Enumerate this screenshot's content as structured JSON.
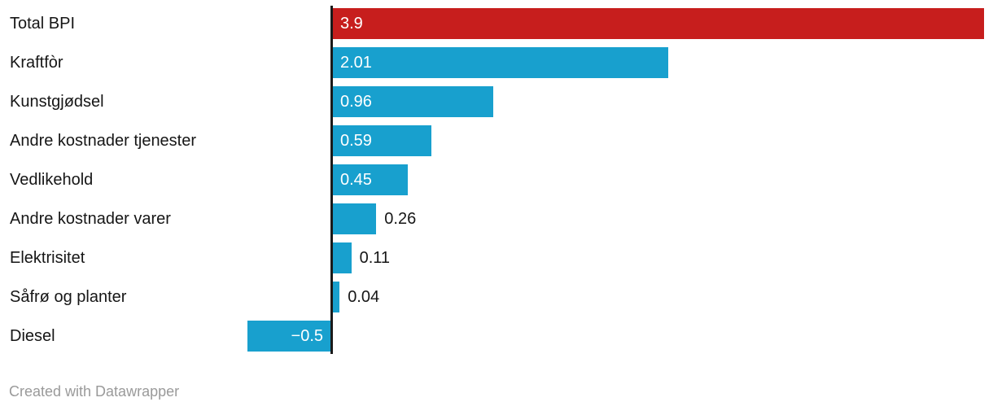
{
  "chart_data": {
    "type": "bar",
    "orientation": "horizontal",
    "title": "",
    "xlabel": "",
    "ylabel": "",
    "grid": false,
    "legend": false,
    "xlim": [
      -0.5,
      3.9
    ],
    "categories": [
      "Total BPI",
      "Kraftfòr",
      "Kunstgjødsel",
      "Andre kostnader tjenester",
      "Vedlikehold",
      "Andre kostnader varer",
      "Elektrisitet",
      "Såfrø og planter",
      "Diesel"
    ],
    "values": [
      3.9,
      2.01,
      0.96,
      0.59,
      0.45,
      0.26,
      0.11,
      0.04,
      -0.5
    ],
    "value_labels": [
      "3.9",
      "2.01",
      "0.96",
      "0.59",
      "0.45",
      "0.26",
      "0.11",
      "0.04",
      "−0.5"
    ],
    "bar_colors": [
      "#c71e1d",
      "#18a0ce",
      "#18a0ce",
      "#18a0ce",
      "#18a0ce",
      "#18a0ce",
      "#18a0ce",
      "#18a0ce",
      "#18a0ce"
    ]
  },
  "colors": {
    "highlight_bar": "#c71e1d",
    "default_bar": "#18a0ce",
    "axis_line": "#1a1a1a",
    "category_label": "#161616",
    "value_inside": "#ffffff",
    "value_outside": "#161616",
    "attribution": "#9a9a9a",
    "background": "#ffffff"
  },
  "footer": {
    "attribution": "Created with Datawrapper"
  }
}
